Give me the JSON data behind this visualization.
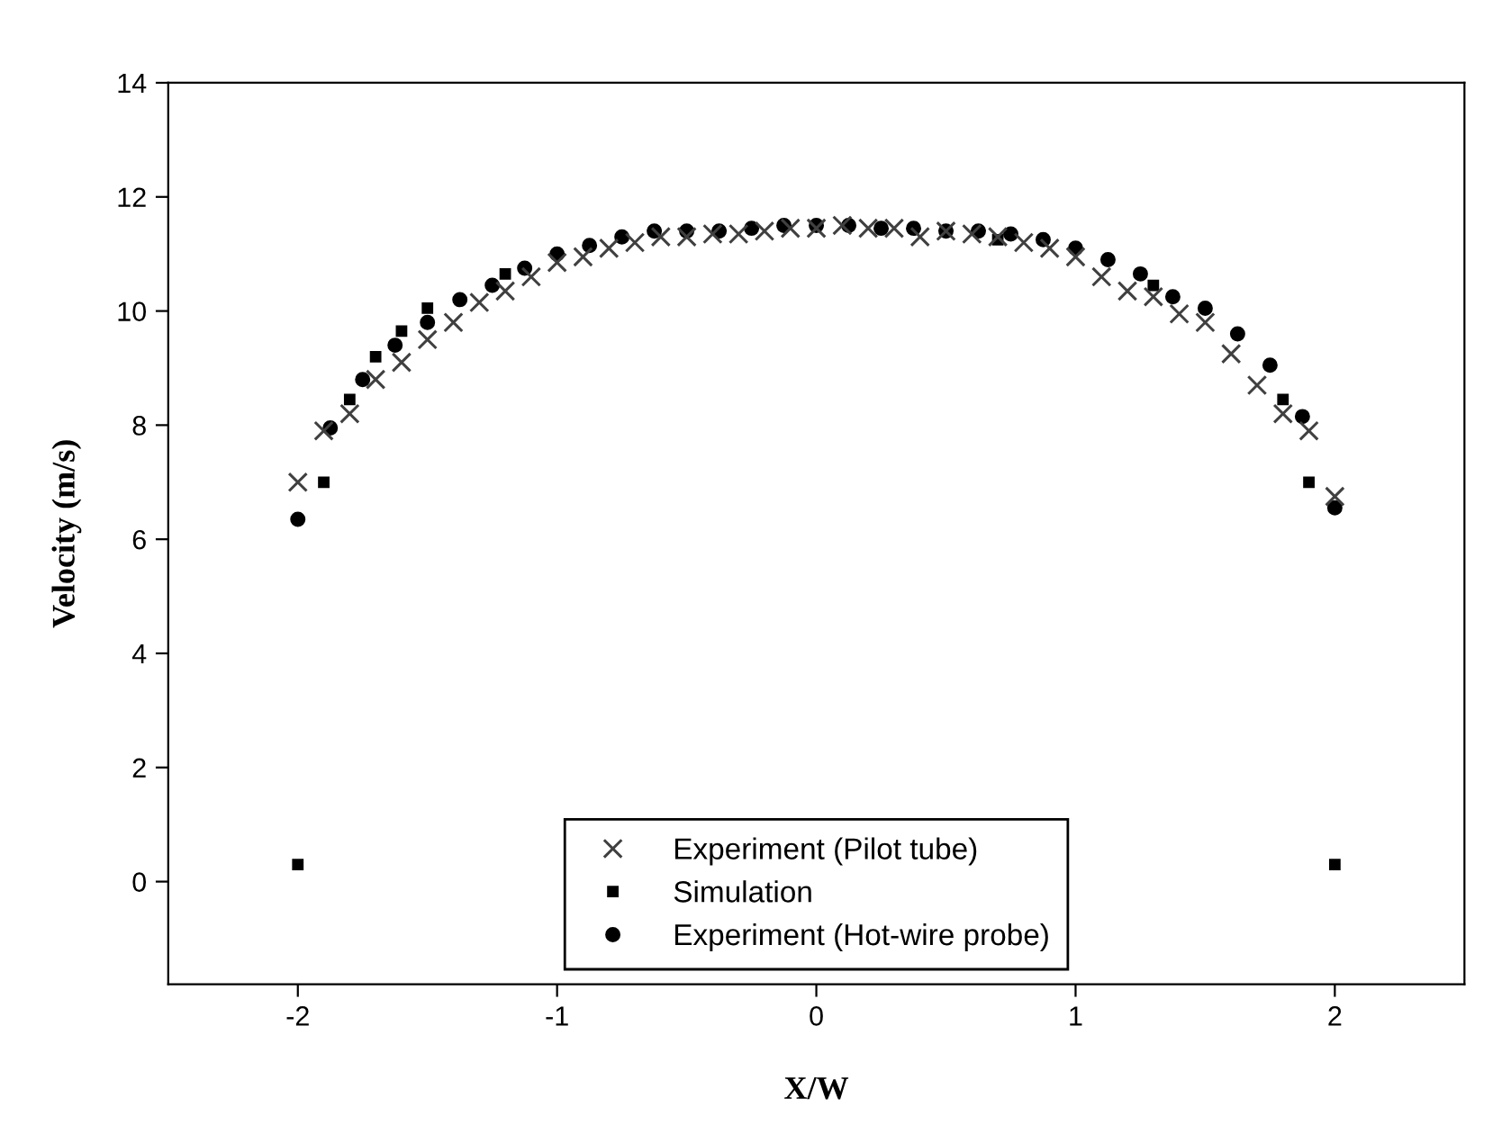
{
  "chart_data": {
    "type": "scatter",
    "xlabel": "X/W",
    "ylabel": "Velocity (m/s)",
    "xlim": [
      -2.5,
      2.5
    ],
    "xticks": [
      -2,
      -1,
      0,
      1,
      2
    ],
    "ylim": [
      -1.8,
      14
    ],
    "yticks": [
      0,
      2,
      4,
      6,
      8,
      10,
      12,
      14
    ],
    "grid": false,
    "legend": "bottom",
    "series": [
      {
        "name": "Experiment (Pilot tube)",
        "color": "#404040",
        "marker": "cross",
        "x": [
          -2.0,
          -1.9,
          -1.8,
          -1.7,
          -1.6,
          -1.5,
          -1.4,
          -1.3,
          -1.2,
          -1.1,
          -1.0,
          -0.9,
          -0.8,
          -0.7,
          -0.6,
          -0.5,
          -0.4,
          -0.3,
          -0.2,
          -0.1,
          0.0,
          0.1,
          0.2,
          0.3,
          0.4,
          0.5,
          0.6,
          0.7,
          0.8,
          0.9,
          1.0,
          1.1,
          1.2,
          1.3,
          1.4,
          1.5,
          1.6,
          1.7,
          1.8,
          1.9,
          2.0
        ],
        "values": [
          7.0,
          7.9,
          8.2,
          8.8,
          9.1,
          9.5,
          9.8,
          10.15,
          10.35,
          10.6,
          10.85,
          10.95,
          11.1,
          11.2,
          11.3,
          11.3,
          11.35,
          11.35,
          11.4,
          11.45,
          11.45,
          11.5,
          11.45,
          11.45,
          11.3,
          11.4,
          11.35,
          11.3,
          11.2,
          11.1,
          10.95,
          10.6,
          10.35,
          10.25,
          9.95,
          9.8,
          9.25,
          8.7,
          8.2,
          7.9,
          6.75
        ]
      },
      {
        "name": "Simulation",
        "color": "#000000",
        "marker": "square",
        "x": [
          -2.0,
          -1.9,
          -1.8,
          -1.7,
          -1.6,
          -1.5,
          -1.2,
          0.7,
          1.3,
          1.8,
          1.9,
          2.0
        ],
        "values": [
          0.3,
          7.0,
          8.45,
          9.2,
          9.65,
          10.05,
          10.65,
          11.25,
          10.45,
          8.45,
          7.0,
          0.3
        ]
      },
      {
        "name": "Experiment (Hot-wire probe)",
        "color": "#000000",
        "marker": "circle",
        "x": [
          -2.0,
          -1.875,
          -1.75,
          -1.625,
          -1.5,
          -1.375,
          -1.25,
          -1.125,
          -1.0,
          -0.875,
          -0.75,
          -0.625,
          -0.5,
          -0.375,
          -0.25,
          -0.125,
          0.0,
          0.125,
          0.25,
          0.375,
          0.5,
          0.625,
          0.75,
          0.875,
          1.0,
          1.125,
          1.25,
          1.375,
          1.5,
          1.625,
          1.75,
          1.875,
          2.0
        ],
        "values": [
          6.35,
          7.95,
          8.8,
          9.4,
          9.8,
          10.2,
          10.45,
          10.75,
          11.0,
          11.15,
          11.3,
          11.4,
          11.4,
          11.4,
          11.45,
          11.5,
          11.5,
          11.5,
          11.45,
          11.45,
          11.4,
          11.4,
          11.35,
          11.25,
          11.1,
          10.9,
          10.65,
          10.25,
          10.05,
          9.6,
          9.05,
          8.15,
          6.55
        ]
      }
    ]
  }
}
